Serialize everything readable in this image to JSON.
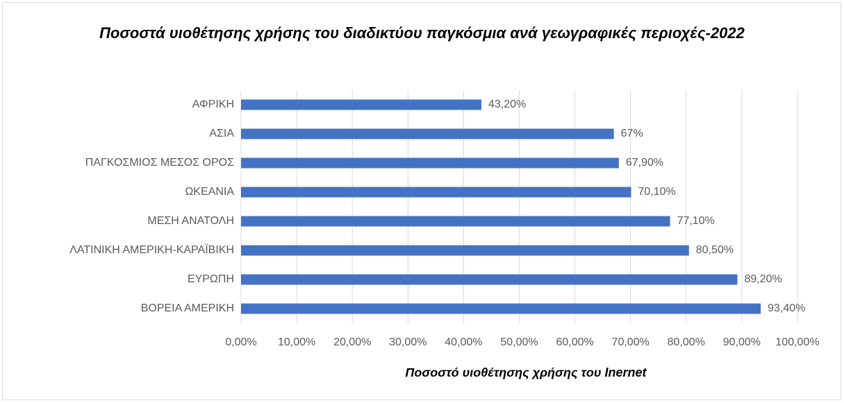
{
  "chart_data": {
    "type": "bar",
    "orientation": "horizontal",
    "title": "Ποσοστά υιοθέτησης χρήσης του διαδικτύου παγκόσμια ανά γεωγραφικές περιοχές-2022",
    "x_label": "Ποσοστό υιοθέτησης χρήσης του Inernet",
    "categories": [
      "ΑΦΡΙΚΗ",
      "ΑΣΙΑ",
      "ΠΑΓΚΟΣΜΙΟΣ ΜΕΣΟΣ ΟΡΟΣ",
      "ΩΚΕΑΝΙΑ",
      "ΜΕΣΗ ΑΝΑΤΟΛΗ",
      "ΛΑΤΙΝΙΚΗ ΑΜΕΡΙΚΗ-ΚΑΡΑΪΒΙΚΗ",
      "ΕΥΡΩΠΗ",
      "ΒΟΡΕΙΑ ΑΜΕΡΙΚΗ"
    ],
    "values": [
      43.2,
      67,
      67.9,
      70.1,
      77.1,
      80.5,
      89.2,
      93.4
    ],
    "value_labels": [
      "43,20%",
      "67%",
      "67,90%",
      "70,10%",
      "77,10%",
      "80,50%",
      "89,20%",
      "93,40%"
    ],
    "color": "#4472c4",
    "xlim": [
      0,
      100
    ],
    "xticks": [
      {
        "value": 0,
        "label": "0,00%"
      },
      {
        "value": 10,
        "label": "10,00%"
      },
      {
        "value": 20,
        "label": "20,00%"
      },
      {
        "value": 30,
        "label": "30,00%"
      },
      {
        "value": 40,
        "label": "40,00%"
      },
      {
        "value": 50,
        "label": "50,00%"
      },
      {
        "value": 60,
        "label": "60,00%"
      },
      {
        "value": 70,
        "label": "70,00%"
      },
      {
        "value": 80,
        "label": "80,00%"
      },
      {
        "value": 90,
        "label": "90,00%"
      },
      {
        "value": 100,
        "label": "100,00%"
      }
    ],
    "grid": true
  }
}
